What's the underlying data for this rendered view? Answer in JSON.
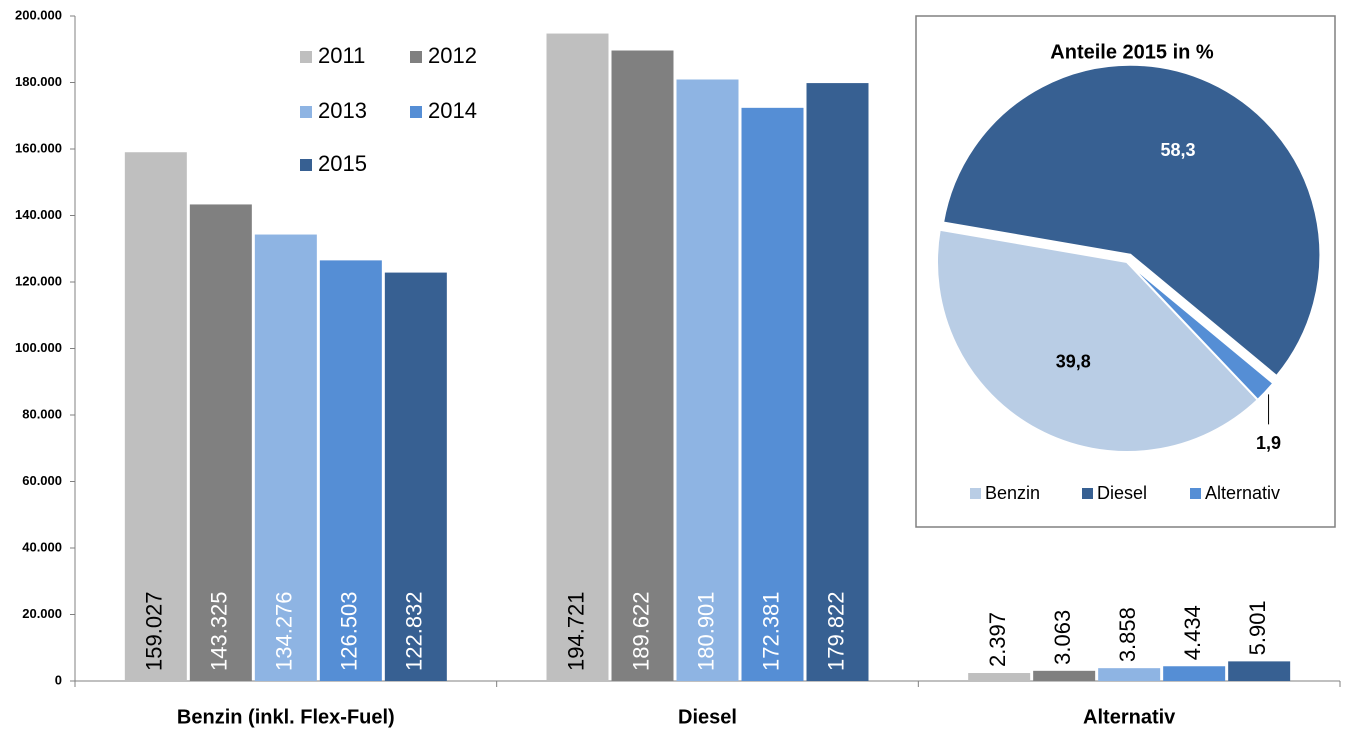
{
  "chart_data": [
    {
      "type": "bar",
      "categories": [
        "Benzin (inkl. Flex-Fuel)",
        "Diesel",
        "Alternativ"
      ],
      "series": [
        {
          "name": "2011",
          "color": "#bfbfbf",
          "values": [
            159027,
            194721,
            2397
          ],
          "value_labels": [
            "159.027",
            "194.721",
            "2.397"
          ]
        },
        {
          "name": "2012",
          "color": "#808080",
          "values": [
            143325,
            189622,
            3063
          ],
          "value_labels": [
            "143.325",
            "189.622",
            "3.063"
          ]
        },
        {
          "name": "2013",
          "color": "#8eb4e3",
          "values": [
            134276,
            180901,
            3858
          ],
          "value_labels": [
            "134.276",
            "180.901",
            "3.858"
          ]
        },
        {
          "name": "2014",
          "color": "#558ed5",
          "values": [
            126503,
            172381,
            4434
          ],
          "value_labels": [
            "126.503",
            "172.381",
            "4.434"
          ]
        },
        {
          "name": "2015",
          "color": "#376092",
          "values": [
            122832,
            179822,
            5901
          ],
          "value_labels": [
            "122.832",
            "179.822",
            "5.901"
          ]
        }
      ],
      "ylim": [
        0,
        200000
      ],
      "yticks": [
        0,
        {
          "value": 20000,
          "label": "20.000"
        },
        {
          "value": 40000,
          "label": "40.000"
        },
        {
          "value": 60000,
          "label": "60.000"
        },
        {
          "value": 80000,
          "label": "80.000"
        },
        {
          "value": 100000,
          "label": "100.000"
        },
        {
          "value": 120000,
          "label": "120.000"
        },
        {
          "value": 140000,
          "label": "140.000"
        },
        {
          "value": 160000,
          "label": "160.000"
        },
        {
          "value": 180000,
          "label": "180.000"
        },
        {
          "value": 200000,
          "label": "200.000"
        }
      ],
      "grid": false
    },
    {
      "type": "pie",
      "title": "Anteile 2015 in %",
      "categories": [
        "Benzin",
        "Diesel",
        "Alternativ"
      ],
      "values": [
        39.8,
        58.3,
        1.9
      ],
      "value_labels": [
        "39,8",
        "58,3",
        "1,9"
      ],
      "colors": [
        "#b9cde5",
        "#376092",
        "#558ed5"
      ]
    }
  ]
}
